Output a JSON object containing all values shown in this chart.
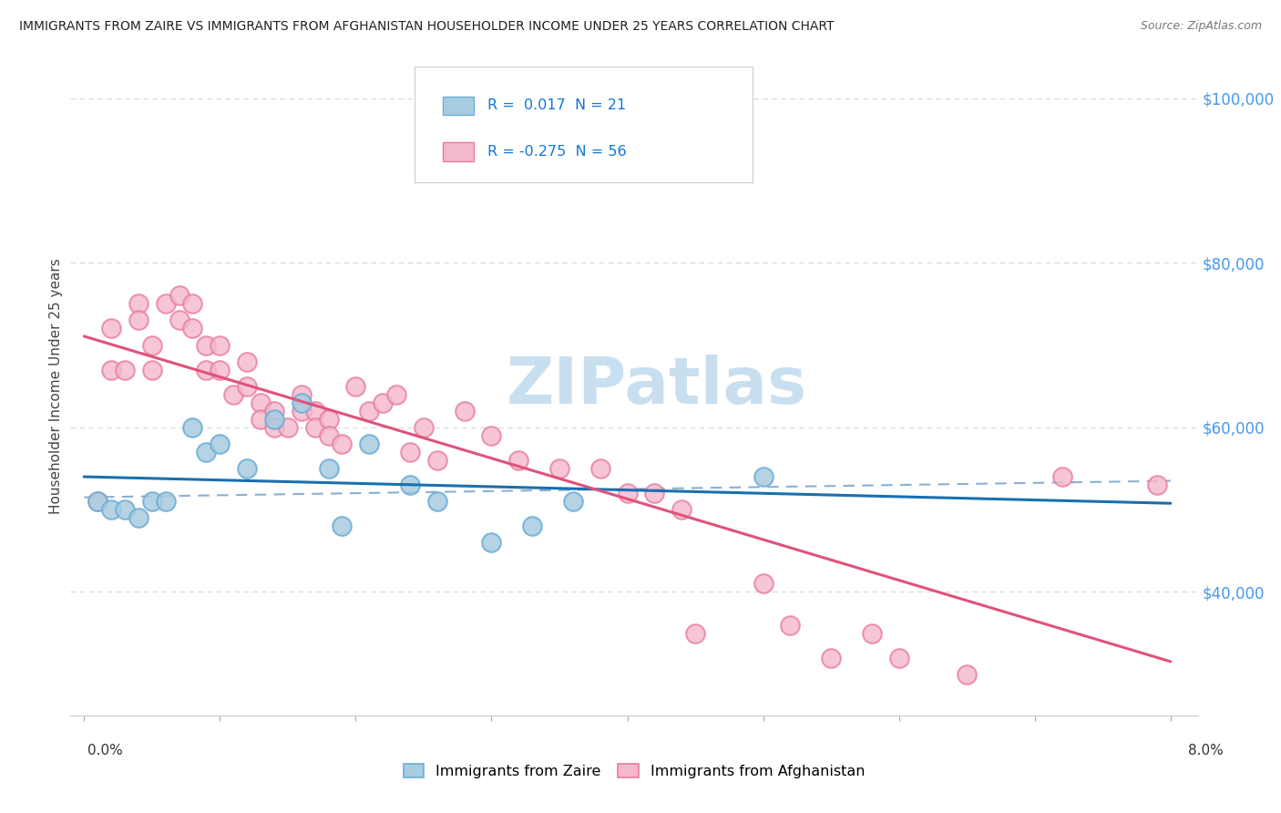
{
  "title": "IMMIGRANTS FROM ZAIRE VS IMMIGRANTS FROM AFGHANISTAN HOUSEHOLDER INCOME UNDER 25 YEARS CORRELATION CHART",
  "source": "Source: ZipAtlas.com",
  "ylabel": "Householder Income Under 25 years",
  "zaire_color_fill": "#a8cce0",
  "zaire_color_edge": "#6baed6",
  "afghanistan_color_fill": "#f4b8ce",
  "afghanistan_color_edge": "#e87da0",
  "trend_zaire_color": "#1a6faf",
  "trend_afghanistan_color": "#e0527a",
  "dashed_line_color": "#8ab0d0",
  "watermark_color": "#c8dff0",
  "grid_color": "#d8d8d8",
  "ytick_color": "#4499ee",
  "R_zaire": 0.017,
  "N_zaire": 21,
  "R_afghanistan": -0.275,
  "N_afghanistan": 56,
  "xlim": [
    0.0,
    0.08
  ],
  "ylim": [
    25000,
    105000
  ],
  "yticks": [
    40000,
    60000,
    80000,
    100000
  ],
  "zaire_x": [
    0.001,
    0.002,
    0.003,
    0.004,
    0.005,
    0.006,
    0.008,
    0.009,
    0.01,
    0.012,
    0.014,
    0.016,
    0.018,
    0.019,
    0.021,
    0.024,
    0.026,
    0.03,
    0.033,
    0.036,
    0.05
  ],
  "zaire_y": [
    51000,
    50000,
    50000,
    49000,
    51000,
    51000,
    60000,
    57000,
    58000,
    55000,
    61000,
    63000,
    55000,
    48000,
    58000,
    53000,
    51000,
    46000,
    48000,
    51000,
    54000
  ],
  "afghanistan_x": [
    0.001,
    0.002,
    0.002,
    0.003,
    0.004,
    0.004,
    0.005,
    0.005,
    0.006,
    0.007,
    0.007,
    0.008,
    0.008,
    0.009,
    0.009,
    0.01,
    0.01,
    0.011,
    0.012,
    0.012,
    0.013,
    0.013,
    0.014,
    0.014,
    0.015,
    0.016,
    0.016,
    0.017,
    0.017,
    0.018,
    0.018,
    0.019,
    0.02,
    0.021,
    0.022,
    0.023,
    0.024,
    0.025,
    0.026,
    0.028,
    0.03,
    0.032,
    0.035,
    0.038,
    0.04,
    0.042,
    0.044,
    0.045,
    0.05,
    0.052,
    0.055,
    0.058,
    0.06,
    0.065,
    0.072,
    0.079
  ],
  "afghanistan_y": [
    51000,
    67000,
    72000,
    67000,
    75000,
    73000,
    70000,
    67000,
    75000,
    76000,
    73000,
    75000,
    72000,
    70000,
    67000,
    70000,
    67000,
    64000,
    68000,
    65000,
    63000,
    61000,
    62000,
    60000,
    60000,
    64000,
    62000,
    62000,
    60000,
    61000,
    59000,
    58000,
    65000,
    62000,
    63000,
    64000,
    57000,
    60000,
    56000,
    62000,
    59000,
    56000,
    55000,
    55000,
    52000,
    52000,
    50000,
    35000,
    41000,
    36000,
    32000,
    35000,
    32000,
    30000,
    54000,
    53000
  ]
}
